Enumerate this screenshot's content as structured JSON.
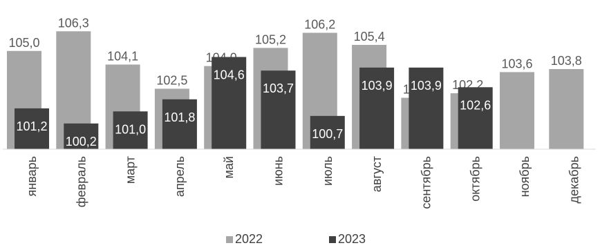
{
  "chart_data": {
    "type": "bar",
    "categories": [
      "январь",
      "февраль",
      "март",
      "апрель",
      "май",
      "июнь",
      "июль",
      "август",
      "сентябрь",
      "октябрь",
      "ноябрь",
      "декабрь"
    ],
    "series": [
      {
        "name": "2022",
        "color": "#a6a6a6",
        "values": [
          105.0,
          106.3,
          104.1,
          102.5,
          104.0,
          105.2,
          106.2,
          105.4,
          101.9,
          102.2,
          103.6,
          103.8
        ],
        "labels": [
          "105,0",
          "106,3",
          "104,1",
          "102,5",
          "104,0",
          "105,2",
          "106,2",
          "105,4",
          "101,9",
          "102,2",
          "103,6",
          "103,8"
        ]
      },
      {
        "name": "2023",
        "color": "#404040",
        "values": [
          101.2,
          100.2,
          101.0,
          101.8,
          104.6,
          103.7,
          100.7,
          103.9,
          103.9,
          102.6,
          null,
          null
        ],
        "labels": [
          "101,2",
          "100,2",
          "101,0",
          "101,8",
          "104,6",
          "103,7",
          "100,7",
          "103,9",
          "103,9",
          "102,6",
          "",
          ""
        ]
      }
    ],
    "ylim": [
      98.5,
      107.0
    ],
    "grid": false,
    "legend": "bottom"
  }
}
